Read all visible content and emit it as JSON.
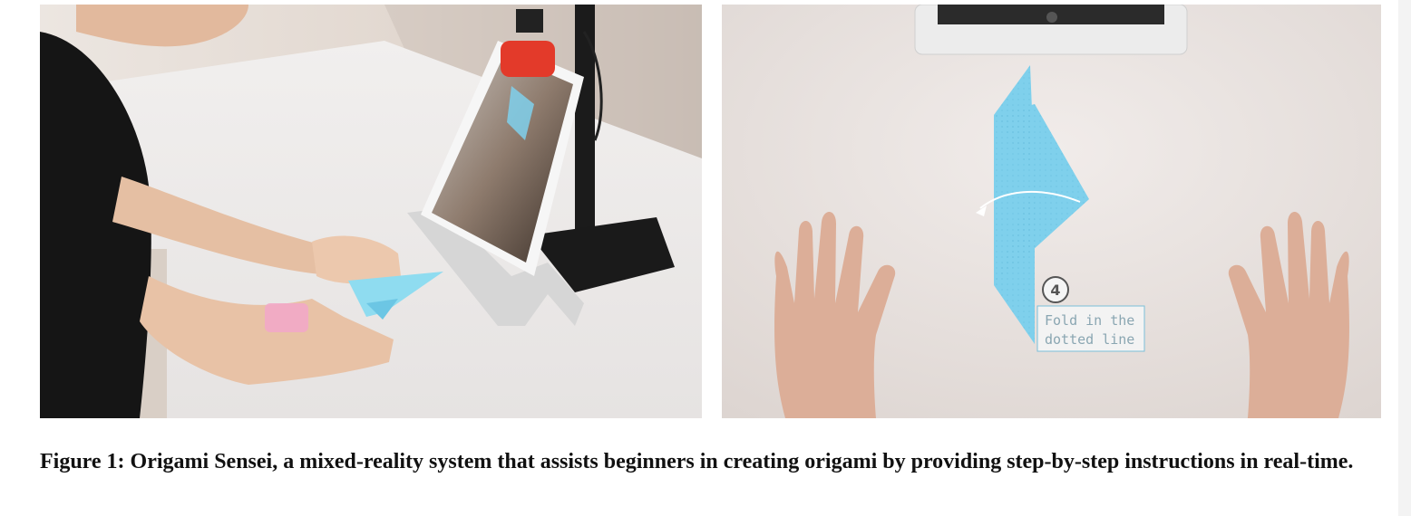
{
  "figure": {
    "caption": "Figure 1: Origami Sensei, a mixed-reality system that assists beginners in creating origami by providing step-by-step instructions in real-time."
  },
  "projection": {
    "step_number": "4",
    "instruction_line1": "Fold in the",
    "instruction_line2": "dotted line"
  },
  "colors": {
    "paper_blue": "#7fd0ec",
    "tablet_clip": "#e33a2a"
  }
}
